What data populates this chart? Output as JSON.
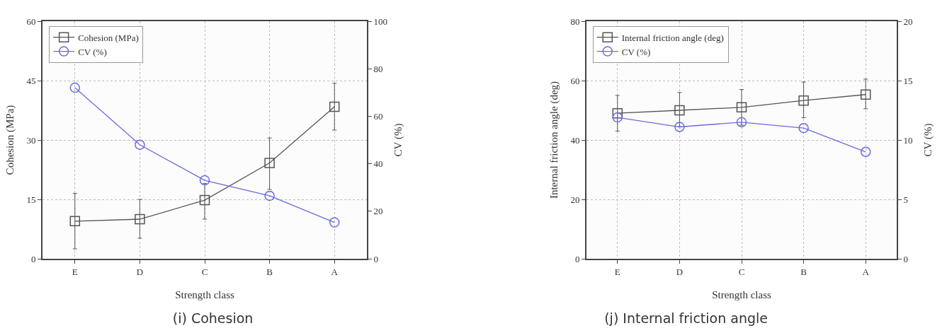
{
  "chart_data": [
    {
      "type": "line",
      "title": "(i) Cohesion",
      "xlabel": "Strength class",
      "ylabel": "Cohesion (MPa)",
      "y2label": "CV (%)",
      "categories": [
        "E",
        "D",
        "C",
        "B",
        "A"
      ],
      "series": [
        {
          "name": "Cohesion (MPa)",
          "color": "#555555",
          "marker": "square",
          "values": [
            9.5,
            10,
            14.8,
            24.2,
            38.4
          ],
          "errors": [
            [
              2.5,
              16.5
            ],
            [
              5.2,
              15
            ],
            [
              10,
              19
            ],
            [
              17.5,
              30.5
            ],
            [
              32.5,
              44.3
            ]
          ]
        },
        {
          "name": "CV (%)",
          "color": "#6a6ae0",
          "marker": "circle",
          "axis": "y2",
          "values": [
            72,
            48,
            33,
            26.5,
            15.3
          ]
        }
      ],
      "ylim": [
        0,
        60
      ],
      "yticks": [
        0,
        15,
        30,
        45,
        60
      ],
      "y2lim": [
        0,
        100
      ],
      "y2ticks": [
        0,
        20,
        40,
        60,
        80,
        100
      ],
      "grid": true,
      "legend": "top left",
      "line_style": "solid"
    },
    {
      "type": "line",
      "title": "(j) Internal friction angle",
      "xlabel": "Strength class",
      "ylabel": "Internal friction angle (deg)",
      "y2label": "CV (%)",
      "categories": [
        "E",
        "D",
        "C",
        "B",
        "A"
      ],
      "series": [
        {
          "name": "Internal friction angle (deg)",
          "color": "#555555",
          "marker": "square",
          "values": [
            49,
            50,
            51,
            53.3,
            55.3
          ],
          "errors": [
            [
              43,
              55
            ],
            [
              44.5,
              56
            ],
            [
              45,
              57
            ],
            [
              47.5,
              59.5
            ],
            [
              50.5,
              60.5
            ]
          ]
        },
        {
          "name": "CV (%)",
          "color": "#6a6ae0",
          "marker": "circle",
          "axis": "y2",
          "values": [
            11.9,
            11.1,
            11.5,
            11.0,
            9.0
          ]
        }
      ],
      "ylim": [
        0,
        80
      ],
      "yticks": [
        0,
        20,
        40,
        60,
        80
      ],
      "y2lim": [
        0,
        20
      ],
      "y2ticks": [
        0,
        5,
        10,
        15,
        20
      ],
      "grid": true,
      "legend": "top left",
      "line_style": "solid"
    }
  ]
}
